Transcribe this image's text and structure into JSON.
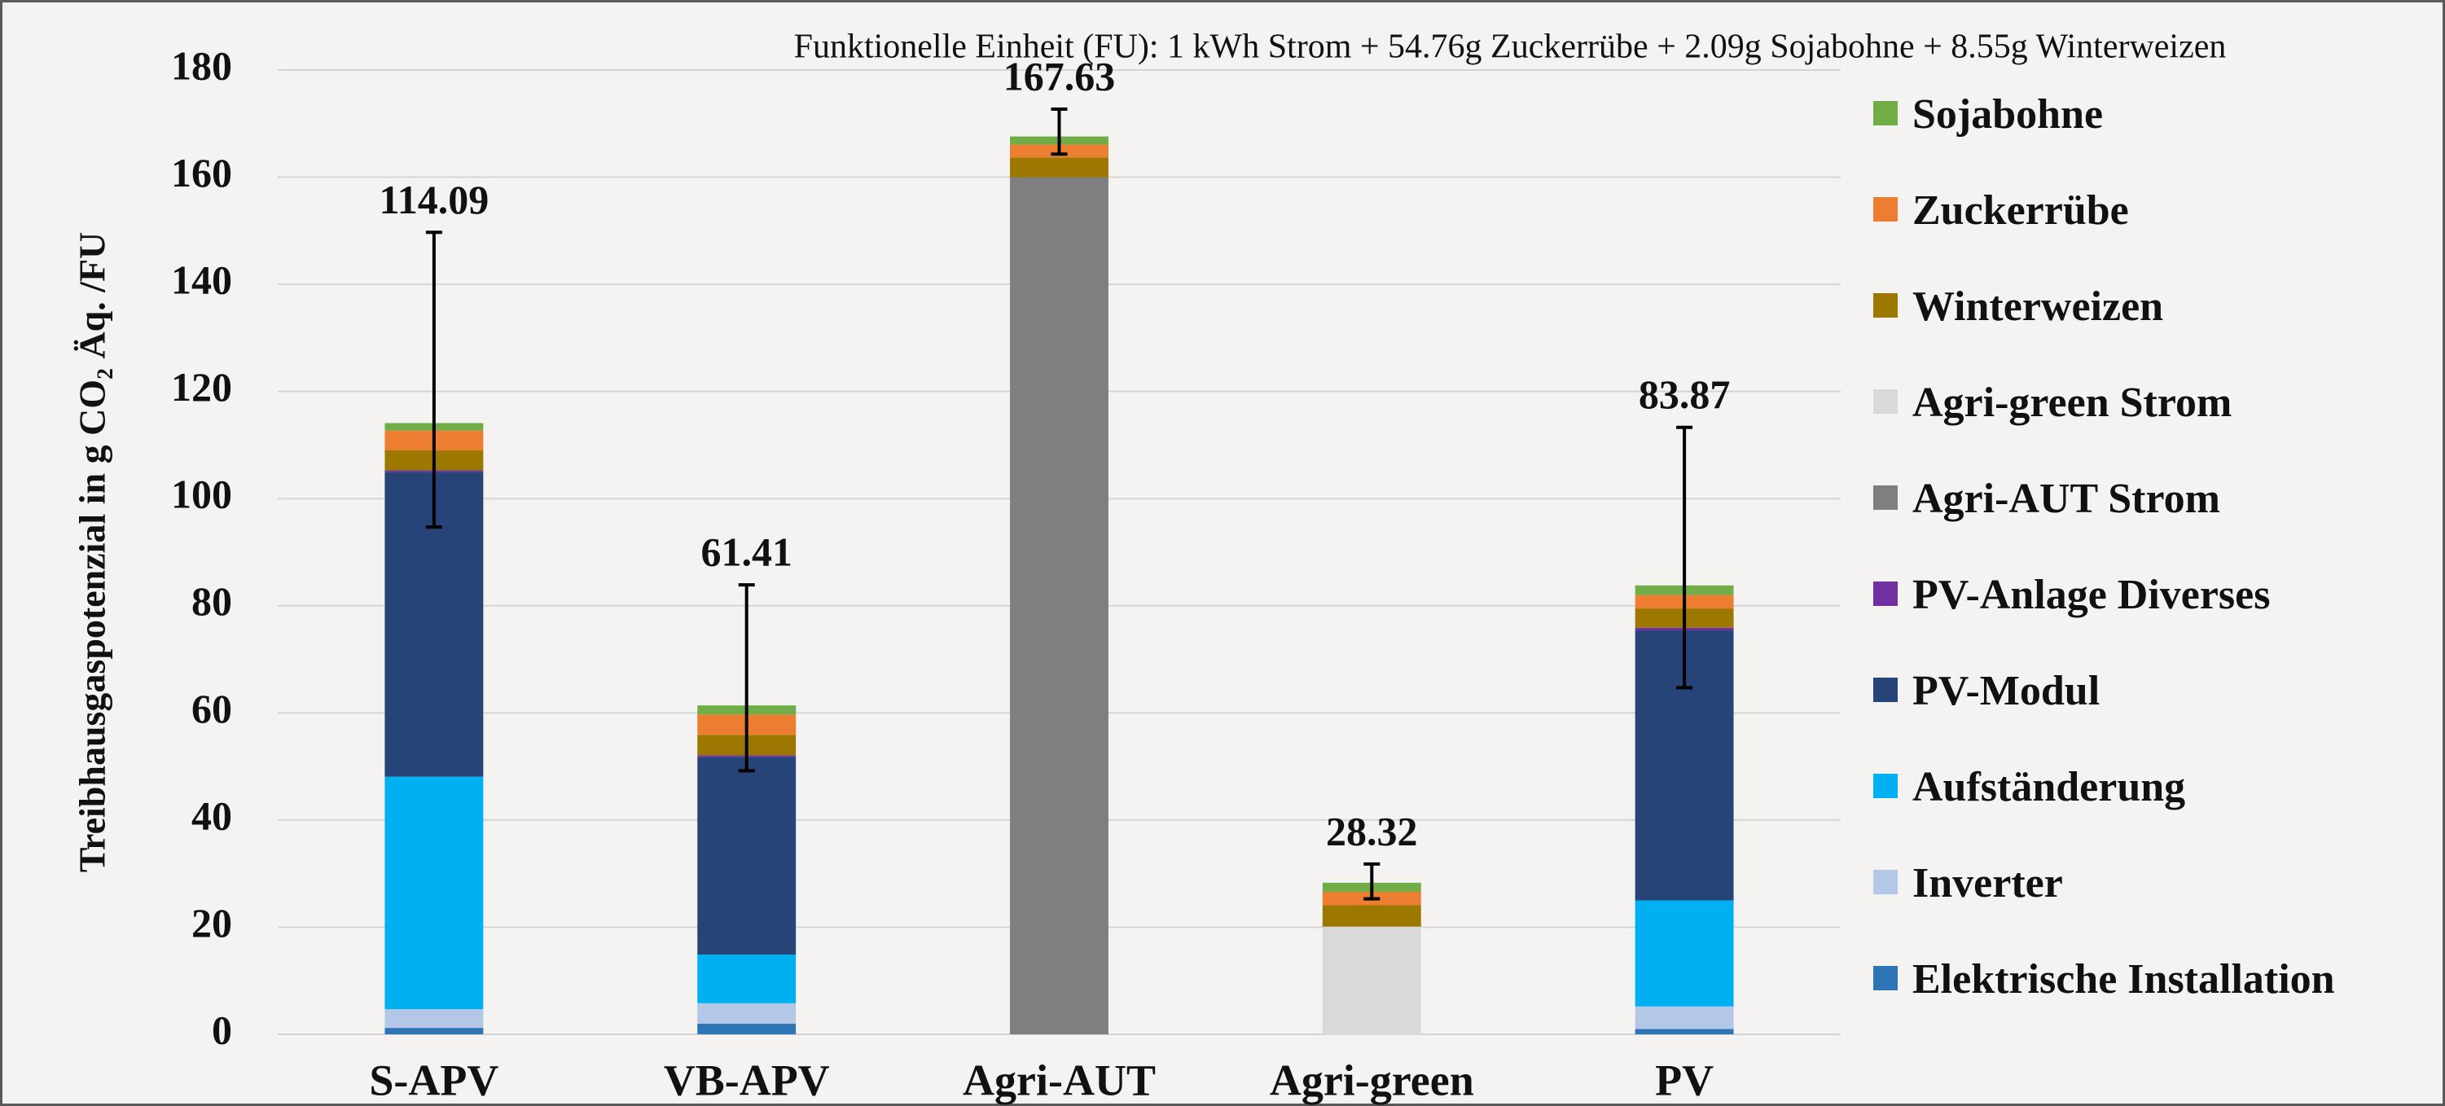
{
  "chart_data": {
    "type": "stacked_bar",
    "annotation": "Funktionelle Einheit (FU): 1 kWh Strom + 54.76g Zuckerrübe + 2.09g Sojabohne + 8.55g Winterweizen",
    "y_label": "Treibhausgaspotenzial in g CO₂ Äq. /FU",
    "categories": [
      "S-APV",
      "VB-APV",
      "Agri-AUT",
      "Agri-green",
      "PV"
    ],
    "series": [
      {
        "name": "Elektrische Installation",
        "color": "#2e75b6",
        "values": [
          1.2,
          2,
          0,
          0,
          1
        ]
      },
      {
        "name": "Inverter",
        "color": "#b4c7e7",
        "values": [
          3.5,
          3.8,
          0,
          0,
          4.2
        ]
      },
      {
        "name": "Aufständerung",
        "color": "#00b0f0",
        "values": [
          43.4,
          9.1,
          0,
          0,
          19.8
        ]
      },
      {
        "name": "PV-Modul",
        "color": "#264478",
        "values": [
          56.9,
          36.9,
          0,
          0,
          50.4
        ]
      },
      {
        "name": "PV-Anlage Diverses",
        "color": "#7030a0",
        "values": [
          0.3,
          0.3,
          0,
          0,
          0.5
        ]
      },
      {
        "name": "Agri-AUT Strom",
        "color": "#7f7f7f",
        "values": [
          0,
          0,
          160,
          0,
          0
        ]
      },
      {
        "name": "Agri-green Strom",
        "color": "#d9d9d9",
        "values": [
          0,
          0,
          0,
          20.1,
          0
        ]
      },
      {
        "name": "Winterweizen",
        "color": "#9c7800",
        "values": [
          3.7,
          3.8,
          3.7,
          4.0,
          3.6
        ]
      },
      {
        "name": "Zuckerrübe",
        "color": "#ed7d31",
        "values": [
          3.7,
          3.8,
          2.4,
          2.5,
          2.5
        ]
      },
      {
        "name": "Sojabohne",
        "color": "#70ad47",
        "values": [
          1.4,
          1.7,
          1.5,
          1.7,
          1.8
        ]
      }
    ],
    "totals": [
      114.09,
      61.41,
      167.63,
      28.32,
      83.87
    ],
    "error_low": [
      94.7,
      49.2,
      164.3,
      25.3,
      64.7
    ],
    "error_high": [
      149.7,
      83.9,
      172.7,
      31.8,
      113.3
    ],
    "ylim": [
      0,
      180
    ],
    "yticks": [
      0,
      20,
      40,
      60,
      80,
      100,
      120,
      140,
      160,
      180
    ],
    "grid": true
  }
}
